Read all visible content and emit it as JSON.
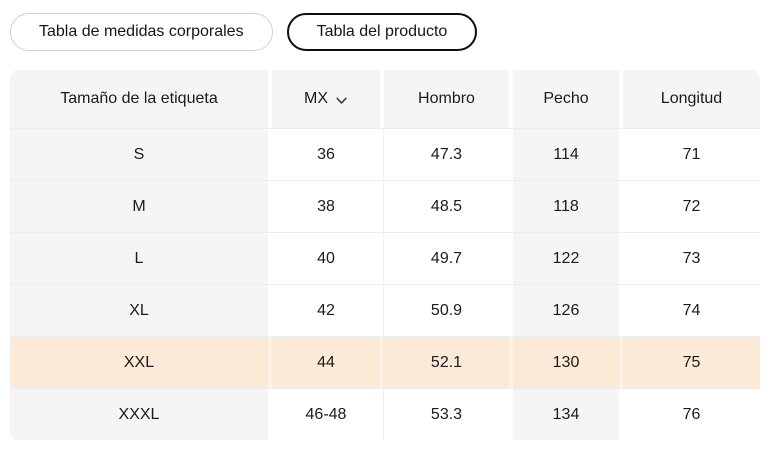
{
  "tabs": [
    {
      "label": "Tabla de medidas corporales",
      "selected": false
    },
    {
      "label": "Tabla del producto",
      "selected": true
    }
  ],
  "table": {
    "columns": [
      "Tamaño de la etiqueta",
      "MX",
      "Hombro",
      "Pecho",
      "Longitud"
    ],
    "size_standard_dropdown": {
      "selected": "MX",
      "icon": "chevron-down"
    },
    "rows": [
      {
        "size": "S",
        "mx": "36",
        "hombro": "47.3",
        "pecho": "114",
        "longitud": "71",
        "highlighted": false
      },
      {
        "size": "M",
        "mx": "38",
        "hombro": "48.5",
        "pecho": "118",
        "longitud": "72",
        "highlighted": false
      },
      {
        "size": "L",
        "mx": "40",
        "hombro": "49.7",
        "pecho": "122",
        "longitud": "73",
        "highlighted": false
      },
      {
        "size": "XL",
        "mx": "42",
        "hombro": "50.9",
        "pecho": "126",
        "longitud": "74",
        "highlighted": false
      },
      {
        "size": "XXL",
        "mx": "44",
        "hombro": "52.1",
        "pecho": "130",
        "longitud": "75",
        "highlighted": true
      },
      {
        "size": "XXXL",
        "mx": "46-48",
        "hombro": "53.3",
        "pecho": "134",
        "longitud": "76",
        "highlighted": false
      }
    ]
  },
  "colors": {
    "highlight_row": "#fcead8",
    "header_bg": "#f5f5f6",
    "shaded_column_bg": "#f5f5f6",
    "selected_pill_border": "#0d0d0d",
    "unselected_pill_border": "#cfcfcf",
    "text": "#1b1b1b"
  }
}
